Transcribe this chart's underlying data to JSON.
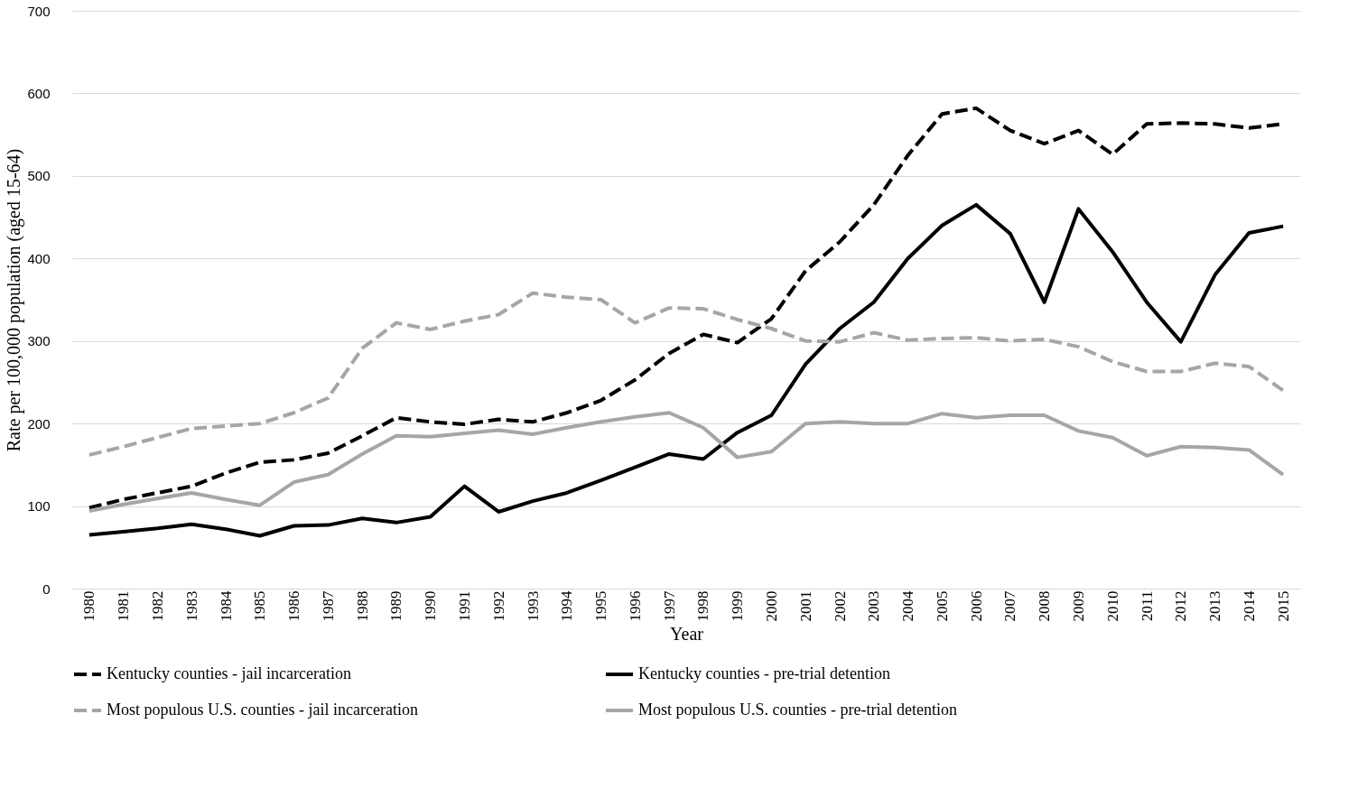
{
  "chart_data": {
    "type": "line",
    "xlabel": "Year",
    "ylabel": "Rate per 100,000 population (aged 15-64)",
    "categories": [
      "1980",
      "1981",
      "1982",
      "1983",
      "1984",
      "1985",
      "1986",
      "1987",
      "1988",
      "1989",
      "1990",
      "1991",
      "1992",
      "1993",
      "1994",
      "1995",
      "1996",
      "1997",
      "1998",
      "1999",
      "2000",
      "2001",
      "2002",
      "2003",
      "2004",
      "2005",
      "2006",
      "2007",
      "2008",
      "2009",
      "2010",
      "2011",
      "2012",
      "2013",
      "2014",
      "2015"
    ],
    "series": [
      {
        "name": "Kentucky counties - jail incarceration",
        "color": "#000000",
        "line_style": "dashed",
        "values": [
          98,
          108,
          116,
          124,
          140,
          153,
          156,
          164,
          185,
          207,
          202,
          199,
          205,
          202,
          213,
          228,
          253,
          285,
          308,
          298,
          327,
          385,
          420,
          465,
          525,
          575,
          582,
          555,
          539,
          555,
          526,
          563,
          564,
          563,
          558,
          563
        ]
      },
      {
        "name": "Kentucky counties - pre-trial detention",
        "color": "#000000",
        "line_style": "solid",
        "values": [
          65,
          69,
          73,
          78,
          72,
          64,
          76,
          77,
          85,
          80,
          87,
          124,
          93,
          106,
          116,
          131,
          147,
          163,
          157,
          189,
          210,
          272,
          315,
          347,
          400,
          440,
          465,
          430,
          347,
          460,
          408,
          347,
          299,
          380,
          431,
          439
        ]
      },
      {
        "name": "Most populous U.S. counties - jail incarceration",
        "color": "#a6a6a6",
        "line_style": "dashed",
        "values": [
          162,
          172,
          183,
          194,
          197,
          200,
          213,
          231,
          291,
          322,
          314,
          324,
          332,
          358,
          353,
          350,
          322,
          340,
          339,
          326,
          315,
          300,
          299,
          310,
          301,
          303,
          304,
          300,
          302,
          293,
          275,
          263,
          263,
          273,
          269,
          240
        ]
      },
      {
        "name": "Most populous U.S. counties - pre-trial detention",
        "color": "#a6a6a6",
        "line_style": "solid",
        "values": [
          94,
          102,
          109,
          116,
          108,
          101,
          129,
          138,
          163,
          185,
          184,
          188,
          192,
          187,
          195,
          202,
          208,
          213,
          195,
          159,
          166,
          200,
          202,
          200,
          200,
          212,
          207,
          210,
          210,
          191,
          183,
          161,
          172,
          171,
          168,
          138
        ]
      }
    ],
    "ylim": [
      0,
      700
    ],
    "yticks": [
      0,
      100,
      200,
      300,
      400,
      500,
      600,
      700
    ],
    "grid": "y",
    "legend": "bottom"
  }
}
